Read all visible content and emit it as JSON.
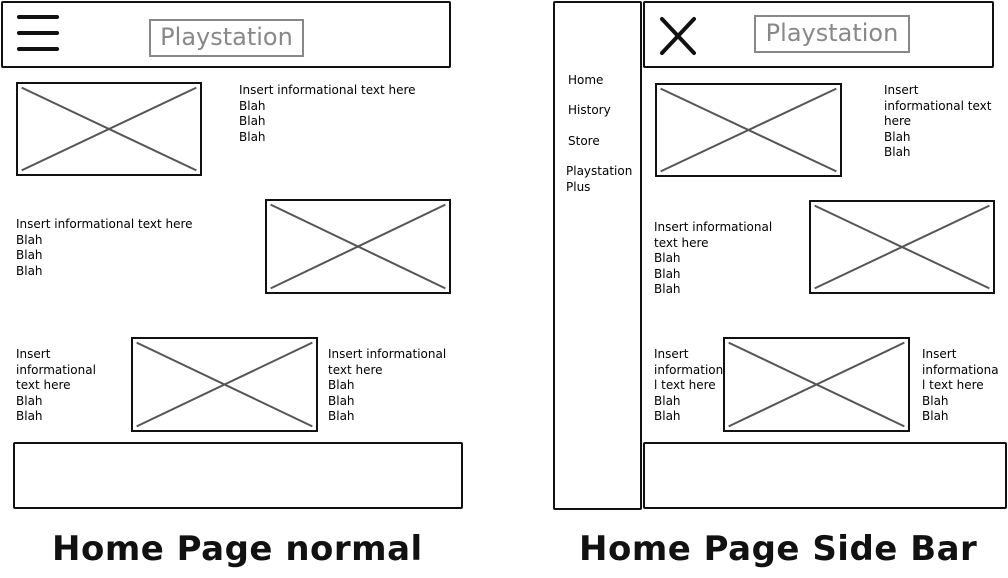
{
  "logo_text": "Playstation",
  "placeholder_icon": "image-placeholder-icon",
  "normal": {
    "caption": "Home Page normal",
    "block1_text": "Insert informational text here\nBlah\nBlah\nBlah",
    "block2_text": "Insert informational text here\nBlah\nBlah\nBlah",
    "block3_left_text": "Insert\ninformational\ntext here\nBlah\nBlah",
    "block3_right_text": "Insert informational\ntext here\nBlah\nBlah\nBlah"
  },
  "sidebar": {
    "caption": "Home Page Side Bar",
    "nav": [
      "Home",
      "History",
      "Store",
      "Playstation\nPlus"
    ],
    "block1_text": "Insert\ninformational text\nhere\nBlah\nBlah",
    "block2_text": "Insert informational\ntext here\nBlah\nBlah\nBlah",
    "block3_left_text": "Insert\ninformationa\nl text here\nBlah\nBlah",
    "block3_right_text": "Insert\ninformationa\nl text here\nBlah\nBlah"
  }
}
